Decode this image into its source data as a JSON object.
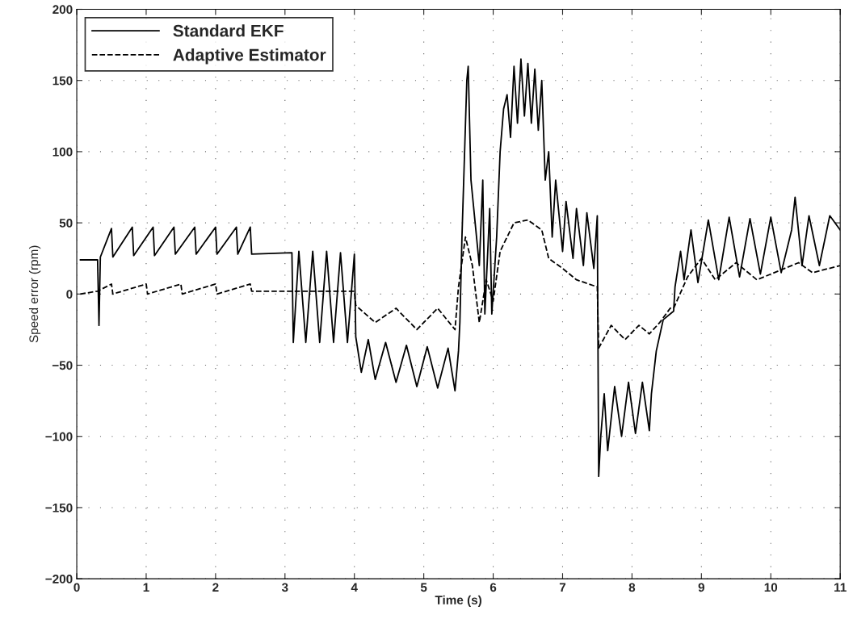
{
  "chart_data": {
    "type": "line",
    "xlabel": "Time (s)",
    "ylabel": "Speed error (rpm)",
    "xlim": [
      0,
      11
    ],
    "ylim": [
      -200,
      200
    ],
    "xticks": [
      0,
      1,
      2,
      3,
      4,
      5,
      6,
      7,
      8,
      9,
      10,
      11
    ],
    "yticks": [
      {
        "value": -200,
        "label": "−200"
      },
      {
        "value": -150,
        "label": "−150"
      },
      {
        "value": -100,
        "label": "−100"
      },
      {
        "value": -50,
        "label": "−50"
      },
      0,
      50,
      100,
      150,
      200
    ],
    "grid": true,
    "legend": "top left",
    "series": [
      {
        "name": "Standard EKF",
        "color": "#000000",
        "line_style": "solid",
        "x": [
          0.05,
          0.3,
          0.32,
          0.34,
          0.5,
          0.52,
          0.8,
          0.82,
          1.1,
          1.12,
          1.4,
          1.42,
          1.7,
          1.72,
          2.0,
          2.02,
          2.3,
          2.32,
          2.5,
          2.52,
          3.1,
          3.12,
          3.2,
          3.3,
          3.4,
          3.5,
          3.6,
          3.7,
          3.8,
          3.9,
          4.0,
          4.02,
          4.1,
          4.2,
          4.3,
          4.45,
          4.6,
          4.75,
          4.9,
          5.05,
          5.2,
          5.35,
          5.45,
          5.5,
          5.52,
          5.55,
          5.62,
          5.64,
          5.68,
          5.75,
          5.8,
          5.85,
          5.88,
          5.95,
          5.98,
          6.05,
          6.1,
          6.15,
          6.2,
          6.25,
          6.3,
          6.35,
          6.4,
          6.45,
          6.5,
          6.55,
          6.6,
          6.65,
          6.7,
          6.75,
          6.8,
          6.85,
          6.9,
          7.0,
          7.05,
          7.15,
          7.2,
          7.3,
          7.35,
          7.45,
          7.5,
          7.52,
          7.55,
          7.6,
          7.65,
          7.75,
          7.85,
          7.95,
          8.05,
          8.15,
          8.25,
          8.28,
          8.35,
          8.45,
          8.6,
          8.62,
          8.7,
          8.75,
          8.85,
          8.95,
          9.1,
          9.25,
          9.4,
          9.55,
          9.7,
          9.85,
          10.0,
          10.15,
          10.3,
          10.35,
          10.45,
          10.55,
          10.7,
          10.85,
          11.0
        ],
        "values": [
          24,
          24,
          -22,
          26,
          46,
          26,
          47,
          27,
          47,
          27,
          47,
          28,
          47,
          28,
          47,
          28,
          47,
          28,
          47,
          28,
          29,
          -34,
          30,
          -34,
          30,
          -34,
          30,
          -34,
          29,
          -34,
          28,
          -30,
          -55,
          -32,
          -60,
          -34,
          -62,
          -36,
          -65,
          -37,
          -66,
          -38,
          -68,
          -40,
          -20,
          40,
          150,
          160,
          80,
          45,
          20,
          80,
          -14,
          60,
          -14,
          40,
          100,
          130,
          140,
          110,
          160,
          120,
          165,
          125,
          162,
          120,
          158,
          115,
          150,
          80,
          100,
          40,
          80,
          30,
          65,
          25,
          60,
          20,
          57,
          18,
          55,
          -128,
          -100,
          -70,
          -110,
          -65,
          -100,
          -62,
          -98,
          -62,
          -96,
          -70,
          -40,
          -18,
          -12,
          5,
          30,
          10,
          45,
          8,
          52,
          10,
          54,
          12,
          53,
          14,
          54,
          15,
          45,
          68,
          20,
          55,
          20,
          55,
          45
        ]
      },
      {
        "name": "Adaptive Estimator",
        "color": "#000000",
        "line_style": "dashed",
        "x": [
          0.05,
          0.3,
          0.5,
          0.52,
          1.0,
          1.02,
          1.5,
          1.52,
          2.0,
          2.02,
          2.5,
          2.52,
          3.1,
          4.0,
          4.02,
          4.3,
          4.6,
          4.9,
          5.2,
          5.45,
          5.5,
          5.6,
          5.7,
          5.8,
          5.9,
          6.0,
          6.1,
          6.3,
          6.5,
          6.7,
          6.8,
          7.0,
          7.2,
          7.5,
          7.52,
          7.7,
          7.9,
          8.1,
          8.25,
          8.4,
          8.55,
          8.6,
          8.8,
          9.0,
          9.2,
          9.5,
          9.8,
          10.2,
          10.4,
          10.6,
          11.0
        ],
        "values": [
          0,
          2,
          7,
          0,
          7,
          0,
          7,
          0,
          7,
          0,
          7,
          2,
          2,
          2,
          -8,
          -20,
          -10,
          -25,
          -10,
          -25,
          5,
          40,
          20,
          -20,
          10,
          -5,
          30,
          50,
          52,
          45,
          25,
          18,
          10,
          5,
          -38,
          -22,
          -32,
          -22,
          -28,
          -20,
          -10,
          -10,
          12,
          25,
          10,
          22,
          10,
          18,
          22,
          15,
          20
        ]
      }
    ]
  }
}
